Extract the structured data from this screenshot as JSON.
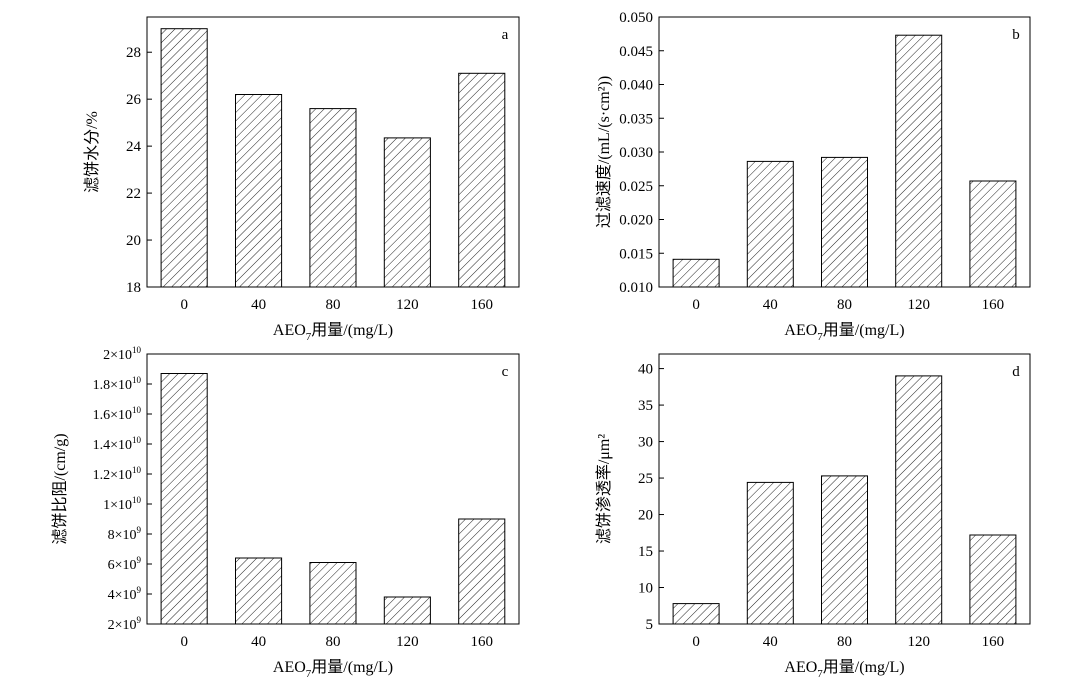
{
  "chart_data": [
    {
      "type": "bar",
      "panel_letter": "a",
      "categories": [
        "0",
        "40",
        "80",
        "120",
        "160"
      ],
      "values": [
        29.0,
        26.2,
        25.6,
        24.35,
        27.1
      ],
      "ylim": [
        18,
        29.5
      ],
      "yticks": [
        18,
        20,
        22,
        24,
        26,
        28
      ],
      "ytick_labels": [
        "18",
        "20",
        "22",
        "24",
        "26",
        "28"
      ],
      "ylabel": "滤饼水分/%",
      "xlabel": {
        "prefix": "AEO",
        "sub": "7",
        "suffix": "用量/(mg/L)"
      },
      "fill": "diagonal-hatch",
      "grid": false
    },
    {
      "type": "bar",
      "panel_letter": "b",
      "categories": [
        "0",
        "40",
        "80",
        "120",
        "160"
      ],
      "values": [
        0.0141,
        0.0286,
        0.0292,
        0.0473,
        0.0257
      ],
      "ylim": [
        0.01,
        0.05
      ],
      "yticks": [
        0.01,
        0.015,
        0.02,
        0.025,
        0.03,
        0.035,
        0.04,
        0.045,
        0.05
      ],
      "ytick_labels": [
        "0.010",
        "0.015",
        "0.020",
        "0.025",
        "0.030",
        "0.035",
        "0.040",
        "0.045",
        "0.050"
      ],
      "ylabel": "过滤速度/(mL/(s·cm²))",
      "xlabel": {
        "prefix": "AEO",
        "sub": "7",
        "suffix": "用量/(mg/L)"
      },
      "fill": "diagonal-hatch",
      "grid": false
    },
    {
      "type": "bar",
      "panel_letter": "c",
      "categories": [
        "0",
        "40",
        "80",
        "120",
        "160"
      ],
      "values": [
        18700000000,
        6400000000,
        6100000000,
        3800000000,
        9000000000
      ],
      "ylim": [
        2000000000,
        20000000000
      ],
      "yticks": [
        2000000000,
        4000000000,
        6000000000,
        8000000000,
        10000000000,
        12000000000,
        14000000000,
        16000000000,
        18000000000,
        20000000000
      ],
      "ytick_labels": [
        {
          "mantissa": "2",
          "exp": "9"
        },
        {
          "mantissa": "4",
          "exp": "9"
        },
        {
          "mantissa": "6",
          "exp": "9"
        },
        {
          "mantissa": "8",
          "exp": "9"
        },
        {
          "mantissa": "1",
          "exp": "10"
        },
        {
          "mantissa": "1.2",
          "exp": "10"
        },
        {
          "mantissa": "1.4",
          "exp": "10"
        },
        {
          "mantissa": "1.6",
          "exp": "10"
        },
        {
          "mantissa": "1.8",
          "exp": "10"
        },
        {
          "mantissa": "2",
          "exp": "10"
        }
      ],
      "ylabel": "滤饼比阻/(cm/g)",
      "xlabel": {
        "prefix": "AEO",
        "sub": "7",
        "suffix": "用量/(mg/L)"
      },
      "fill": "diagonal-hatch",
      "grid": false
    },
    {
      "type": "bar",
      "panel_letter": "d",
      "categories": [
        "0",
        "40",
        "80",
        "120",
        "160"
      ],
      "values": [
        7.8,
        24.4,
        25.3,
        39.0,
        17.2
      ],
      "ylim": [
        5,
        42
      ],
      "yticks": [
        5,
        10,
        15,
        20,
        25,
        30,
        35,
        40
      ],
      "ytick_labels": [
        "5",
        "10",
        "15",
        "20",
        "25",
        "30",
        "35",
        "40"
      ],
      "ylabel": "滤饼渗透率/μm²",
      "xlabel": {
        "prefix": "AEO",
        "sub": "7",
        "suffix": "用量/(mg/L)"
      },
      "fill": "diagonal-hatch",
      "grid": false
    }
  ]
}
